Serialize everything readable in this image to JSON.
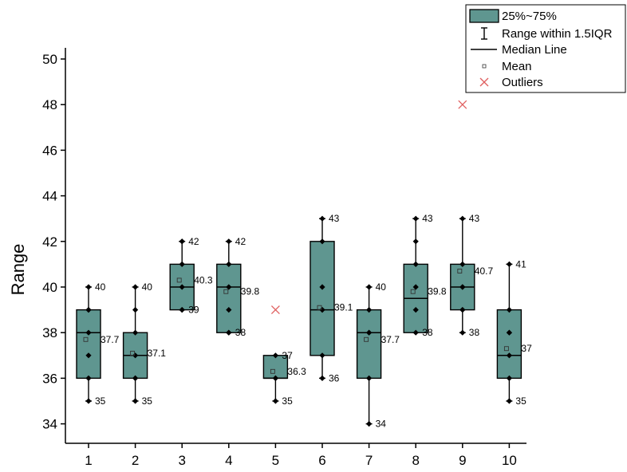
{
  "chart_data": {
    "type": "box",
    "xlabel": "",
    "ylabel": "Range",
    "ylim": [
      33.4,
      50
    ],
    "yticks": [
      34,
      36,
      38,
      40,
      42,
      44,
      46,
      48,
      50
    ],
    "categories": [
      "1",
      "2",
      "3",
      "4",
      "5",
      "6",
      "7",
      "8",
      "9",
      "10"
    ],
    "colors": {
      "box_fill": "#5f9690",
      "box_edge": "#000000",
      "outlier": "#e06060"
    },
    "legend": {
      "placement": "top-right",
      "items": [
        {
          "label": "25%~75%",
          "icon": "box-swatch-icon"
        },
        {
          "label": "Range within 1.5IQR",
          "icon": "whisker-icon"
        },
        {
          "label": "Median Line",
          "icon": "median-line-icon"
        },
        {
          "label": "Mean",
          "icon": "mean-square-icon"
        },
        {
          "label": "Outliers",
          "icon": "outlier-x-icon"
        }
      ]
    },
    "boxes": [
      {
        "category": "1",
        "q1": 36,
        "q3": 39,
        "median": 38,
        "mean": 37.7,
        "whisker_low": 35,
        "whisker_high": 40,
        "mean_label": "37.7",
        "max_label": "40",
        "min_label": "35",
        "points": [
          40,
          39,
          39,
          38,
          37,
          36,
          35
        ]
      },
      {
        "category": "2",
        "q1": 36,
        "q3": 38,
        "median": 37,
        "mean": 37.1,
        "whisker_low": 35,
        "whisker_high": 40,
        "mean_label": "37.1",
        "max_label": "40",
        "min_label": "35",
        "points": [
          40,
          39,
          38,
          37,
          36,
          36,
          35
        ]
      },
      {
        "category": "3",
        "q1": 39,
        "q3": 41,
        "median": 40,
        "mean": 40.3,
        "whisker_low": 39,
        "whisker_high": 42,
        "mean_label": "40.3",
        "max_label": "42",
        "min_label": "39",
        "points": [
          42,
          42,
          41,
          40,
          39,
          39
        ]
      },
      {
        "category": "4",
        "q1": 38,
        "q3": 41,
        "median": 40,
        "mean": 39.8,
        "whisker_low": 38,
        "whisker_high": 42,
        "mean_label": "39.8",
        "max_label": "42",
        "min_label": "38",
        "points": [
          42,
          41,
          40,
          39,
          38,
          38
        ]
      },
      {
        "category": "5",
        "q1": 36,
        "q3": 37,
        "median": 36,
        "mean": 36.3,
        "whisker_low": 35,
        "whisker_high": 37,
        "mean_label": "36.3",
        "max_label": "37",
        "min_label": "35",
        "points": [
          37,
          36,
          36,
          35
        ],
        "outliers": [
          39
        ]
      },
      {
        "category": "6",
        "q1": 37,
        "q3": 42,
        "median": 39,
        "mean": 39.1,
        "whisker_low": 36,
        "whisker_high": 43,
        "mean_label": "39.1",
        "max_label": "43",
        "min_label": "36",
        "points": [
          43,
          42,
          40,
          39,
          39,
          37,
          36
        ]
      },
      {
        "category": "7",
        "q1": 36,
        "q3": 39,
        "median": 38,
        "mean": 37.7,
        "whisker_low": 34,
        "whisker_high": 40,
        "mean_label": "37.7",
        "max_label": "40",
        "min_label": "34",
        "points": [
          40,
          39,
          38,
          38,
          36,
          34
        ]
      },
      {
        "category": "8",
        "q1": 38,
        "q3": 41,
        "median": 39.5,
        "mean": 39.8,
        "whisker_low": 38,
        "whisker_high": 43,
        "mean_label": "39.8",
        "max_label": "43",
        "min_label": "38",
        "points": [
          43,
          42,
          41,
          40,
          39,
          38
        ]
      },
      {
        "category": "9",
        "q1": 39,
        "q3": 41,
        "median": 40,
        "mean": 40.7,
        "whisker_low": 38,
        "whisker_high": 43,
        "mean_label": "40.7",
        "max_label": "43",
        "min_label": "38",
        "points": [
          43,
          41,
          40,
          40,
          39,
          39,
          38
        ],
        "outliers": [
          48
        ]
      },
      {
        "category": "10",
        "q1": 36,
        "q3": 39,
        "median": 37,
        "mean": 37.3,
        "whisker_low": 35,
        "whisker_high": 41,
        "mean_label": "37",
        "max_label": "41",
        "min_label": "35",
        "points": [
          41,
          39,
          38,
          38,
          37,
          36,
          35
        ]
      }
    ]
  }
}
